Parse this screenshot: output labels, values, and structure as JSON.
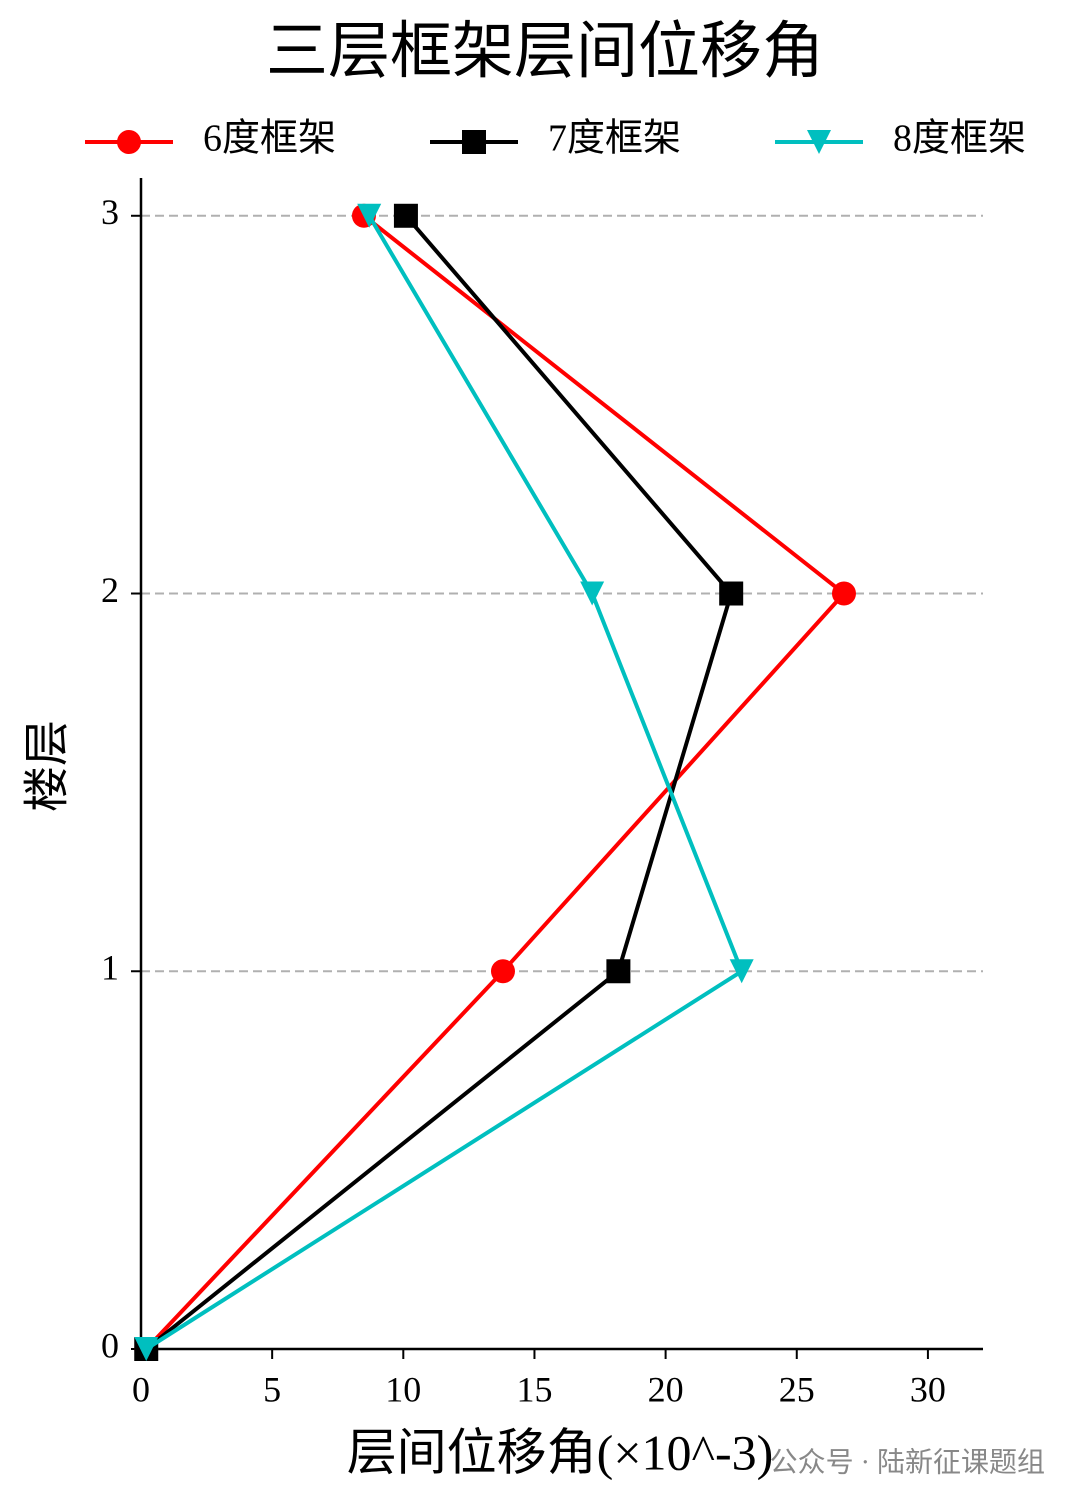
{
  "chart_data": {
    "type": "line",
    "title": "三层框架层间位移角",
    "xlabel": "层间位移角(×10^-3)",
    "ylabel": "楼层",
    "watermark": "公众号 · 陆新征课题组",
    "y": [
      0,
      1,
      2,
      3
    ],
    "series": [
      {
        "name": "6度框架",
        "color": "#ff0000",
        "marker": "circle",
        "x": [
          0.2,
          13.8,
          26.8,
          8.5
        ]
      },
      {
        "name": "7度框架",
        "color": "#000000",
        "marker": "square",
        "x": [
          0.2,
          18.2,
          22.5,
          10.1
        ]
      },
      {
        "name": "8度框架",
        "color": "#00bfbf",
        "marker": "triangle-down",
        "x": [
          0.2,
          22.9,
          17.2,
          8.7
        ]
      }
    ],
    "xlim": [
      0,
      32.1
    ],
    "ylim": [
      0,
      3.1
    ],
    "xticks": [
      0,
      5,
      10,
      15,
      20,
      25,
      30
    ],
    "yticks": [
      0,
      1,
      2,
      3
    ],
    "grid": "y",
    "legend": "top"
  }
}
